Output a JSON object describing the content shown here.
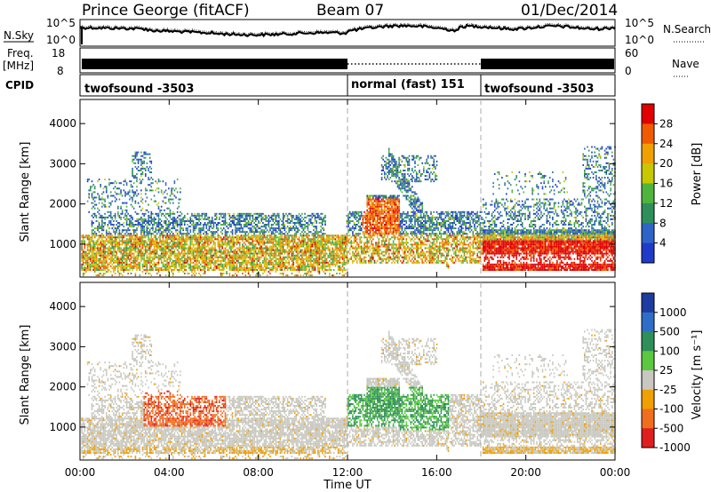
{
  "header": {
    "station": "Prince George (fitACF)",
    "beam": "Beam 07",
    "date": "01/Dec/2014"
  },
  "noise_panel": {
    "left_label": "N.Sky",
    "left_ticks": [
      "10^5",
      "10^0"
    ],
    "right_ticks": [
      "10^5",
      "10^0"
    ],
    "right_label": "N.Search"
  },
  "freq_panel": {
    "label_line1": "Freq.",
    "label_line2": "[MHz]",
    "left_ticks": [
      "18",
      "8"
    ],
    "right_ticks": [
      "60",
      "0"
    ],
    "right_label": "Nave"
  },
  "cpid_panel": {
    "label": "CPID",
    "segments": [
      {
        "name": "twofsound -3503",
        "start_hour": 0,
        "end_hour": 12
      },
      {
        "name": "normal (fast) 151",
        "start_hour": 12,
        "end_hour": 18
      },
      {
        "name": "twofsound -3503",
        "start_hour": 18,
        "end_hour": 24
      }
    ]
  },
  "chart_data": [
    {
      "type": "heatmap",
      "panel": "power",
      "ylabel": "Slant Range [km]",
      "yticks": [
        "1000",
        "2000",
        "3000",
        "4000"
      ],
      "ylim": [
        180,
        4600
      ],
      "colorbar_label": "Power [dB]",
      "colorbar_ticks": [
        "4",
        "8",
        "12",
        "16",
        "20",
        "24",
        "28"
      ],
      "colorbar_colors": [
        "#1e3cc8",
        "#2e64c8",
        "#2f8f5a",
        "#4fb43c",
        "#c8c800",
        "#f0a000",
        "#f05a00",
        "#e00000"
      ],
      "grid": false
    },
    {
      "type": "heatmap",
      "panel": "velocity",
      "ylabel": "Slant Range [km]",
      "yticks": [
        "1000",
        "2000",
        "3000",
        "4000"
      ],
      "ylim": [
        180,
        4600
      ],
      "colorbar_label": "Velocity [m s⁻¹]",
      "colorbar_ticks": [
        "1000",
        "500",
        "100",
        "25",
        "-25",
        "-100",
        "-500",
        "-1000"
      ],
      "colorbar_colors": [
        "#1e3ca0",
        "#2f6ec8",
        "#2f8f5a",
        "#5cc840",
        "#c8c8c0",
        "#f0a000",
        "#f06e1e",
        "#e01e1e"
      ],
      "grid": false
    }
  ],
  "time_axis": {
    "label": "Time UT",
    "ticks": [
      "00:00",
      "04:00",
      "08:00",
      "12:00",
      "16:00",
      "20:00",
      "00:00"
    ],
    "xlim_hours": [
      0,
      24
    ]
  }
}
